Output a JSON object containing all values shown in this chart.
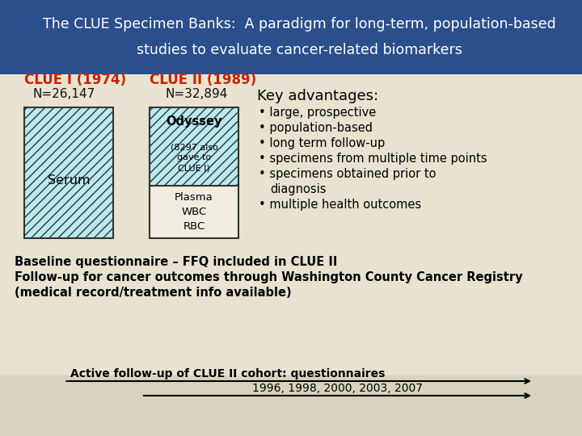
{
  "title_line1": "The CLUE Specimen Banks:  A paradigm for long-term, population-based",
  "title_line2": "studies to evaluate cancer-related biomarkers",
  "title_bg": "#2b4f8c",
  "title_color": "#ffffff",
  "body_bg": "#e8e3d0",
  "bottom_bg": "#d8d3bc",
  "clue1_label": "CLUE I (1974)",
  "clue1_n": "N=26,147",
  "clue2_label": "CLUE II (1989)",
  "clue2_n": "N=32,894",
  "label_color": "#cc2200",
  "n_color": "#111111",
  "serum_text": "Serum",
  "serum_box_fill": "#b8eaf0",
  "odyssey_text": "Odyssey",
  "odyssey_sub": "(8297 also\ngave to\nCLUE I)",
  "odyssey_box_fill": "#b8eaf0",
  "plasma_text": "Plasma\nWBC\nRBC",
  "plasma_box_fill": "#f0ede0",
  "key_adv_title": "Key advantages:",
  "key_adv_bullets": [
    "large, prospective",
    "population-based",
    "long term follow-up",
    "specimens from multiple time points",
    "specimens obtained prior to",
    "  diagnosis",
    "multiple health outcomes"
  ],
  "baseline_line1": "Baseline questionnaire – FFQ included in CLUE II",
  "baseline_line2": "Follow-up for cancer outcomes through Washington County Cancer Registry",
  "baseline_line3": "(medical record/treatment info available)",
  "arrow_label": "Active follow-up of CLUE II cohort: questionnaires",
  "arrow_years": "1996, 1998, 2000, 2003, 2007",
  "box_edge_color": "#333333"
}
